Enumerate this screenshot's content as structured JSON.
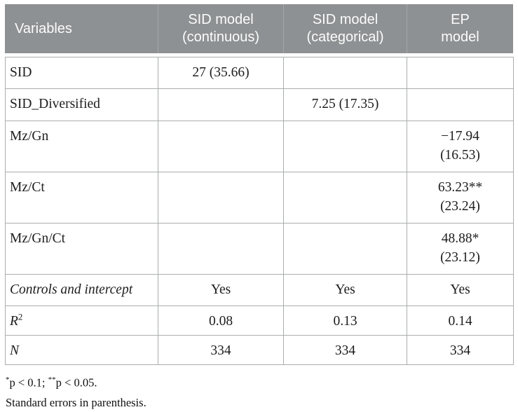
{
  "table": {
    "header": {
      "cells": [
        {
          "line1": "Variables",
          "line2": ""
        },
        {
          "line1": "SID model",
          "line2": "(continuous)"
        },
        {
          "line1": "SID model",
          "line2": "(categorical)"
        },
        {
          "line1": "EP",
          "line2": "model"
        }
      ]
    },
    "rows": [
      {
        "label": "SID",
        "cells": [
          {
            "v": "27 (35.66)"
          },
          {
            "v": ""
          },
          {
            "v": ""
          }
        ]
      },
      {
        "label": "SID_Diversified",
        "cells": [
          {
            "v": ""
          },
          {
            "v": "7.25 (17.35)"
          },
          {
            "v": ""
          }
        ]
      },
      {
        "label": "Mz/Gn",
        "cells": [
          {
            "v": ""
          },
          {
            "v": ""
          },
          {
            "v": "−17.94",
            "se": "(16.53)"
          }
        ]
      },
      {
        "label": "Mz/Ct",
        "cells": [
          {
            "v": ""
          },
          {
            "v": ""
          },
          {
            "v": "63.23**",
            "se": "(23.24)"
          }
        ]
      },
      {
        "label": "Mz/Gn/Ct",
        "cells": [
          {
            "v": ""
          },
          {
            "v": ""
          },
          {
            "v": "48.88*",
            "se": "(23.12)"
          }
        ]
      },
      {
        "label": "Controls and intercept",
        "cells": [
          {
            "v": "Yes"
          },
          {
            "v": "Yes"
          },
          {
            "v": "Yes"
          }
        ]
      },
      {
        "label": "R",
        "label_sup": "2",
        "cells": [
          {
            "v": "0.08"
          },
          {
            "v": "0.13"
          },
          {
            "v": "0.14"
          }
        ]
      },
      {
        "label": "N",
        "cells": [
          {
            "v": "334"
          },
          {
            "v": "334"
          },
          {
            "v": "334"
          }
        ]
      }
    ]
  },
  "footnotes": {
    "line1": {
      "sup1": "*",
      "t1": "p < 0.1; ",
      "sup2": "**",
      "t2": "p < 0.05."
    },
    "line2": "Standard errors in parenthesis."
  },
  "colors": {
    "header_bg": "#8e9193",
    "header_text": "#fcfcfc",
    "grid_border": "#a9aeac",
    "body_text": "#1d1d1d"
  },
  "chart_data": {
    "type": "table",
    "columns": [
      "Variables",
      "SID model (continuous)",
      "SID model (categorical)",
      "EP model"
    ],
    "rows": [
      [
        "SID",
        "27 (35.66)",
        "",
        ""
      ],
      [
        "SID_Diversified",
        "",
        "7.25 (17.35)",
        ""
      ],
      [
        "Mz/Gn",
        "",
        "",
        "−17.94 (16.53)"
      ],
      [
        "Mz/Ct",
        "",
        "",
        "63.23** (23.24)"
      ],
      [
        "Mz/Gn/Ct",
        "",
        "",
        "48.88* (23.12)"
      ],
      [
        "Controls and intercept",
        "Yes",
        "Yes",
        "Yes"
      ],
      [
        "R2",
        "0.08",
        "0.13",
        "0.14"
      ],
      [
        "N",
        "334",
        "334",
        "334"
      ]
    ],
    "notes": [
      "*p < 0.1; **p < 0.05.",
      "Standard errors in parenthesis."
    ]
  }
}
